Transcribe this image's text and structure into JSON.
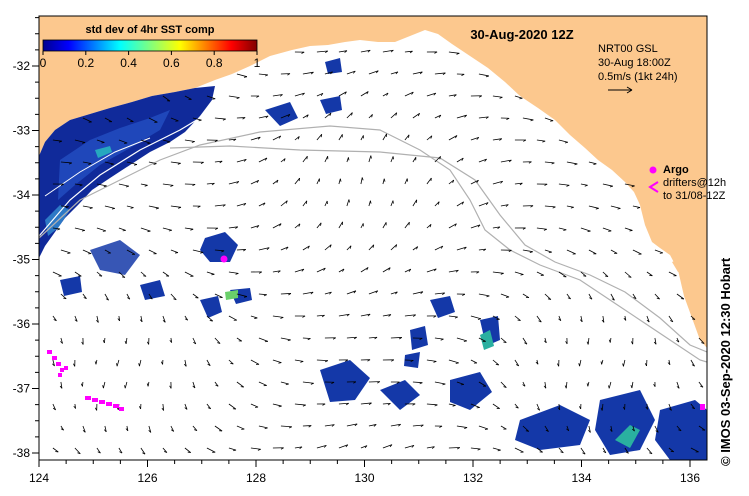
{
  "map": {
    "title": "30-Aug-2020 12Z",
    "colorbar": {
      "label": "std dev of 4hr SST comp",
      "ticks": [
        "0",
        "0.2",
        "0.4",
        "0.6",
        "0.8",
        "1"
      ]
    },
    "current_info": {
      "line1": "NRT00 GSL",
      "line2": "30-Aug 18:00Z",
      "line3": "0.5m/s (1kt 24h)"
    },
    "legend": {
      "argo": "Argo",
      "drifters_line1": "drifters@12h",
      "drifters_line2": "to 31/08-12Z"
    },
    "credit": "© IMOS 03-Sep-2020 12:30 Hobart",
    "x_ticks": [
      "124",
      "126",
      "128",
      "130",
      "132",
      "134",
      "136"
    ],
    "y_ticks": [
      "-32",
      "-33",
      "-34",
      "-35",
      "-36",
      "-37",
      "-38"
    ],
    "colors": {
      "land": "#fcc88e",
      "sea": "#ffffff",
      "sst_low": "#0a1f8f",
      "marker": "#ff00ff"
    }
  }
}
